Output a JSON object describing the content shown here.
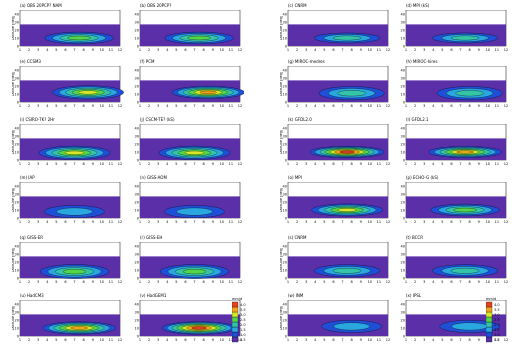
{
  "colors": {
    "levels": [
      "#5a2fa8",
      "#1f4fd6",
      "#2ba7e0",
      "#35c4a8",
      "#53d64a",
      "#d8e62a",
      "#f2a51c",
      "#e8421c"
    ],
    "background": "#ffffff"
  },
  "chart_data": [
    {
      "id": "a",
      "title": "(a) OBS 20PCP? NAM",
      "type": "heatmap",
      "ylabel": "Latitude [deg]",
      "x": [
        1,
        2,
        3,
        4,
        5,
        6,
        7,
        8,
        9,
        10,
        11,
        12
      ],
      "y": [
        0,
        10,
        20,
        30,
        40
      ],
      "xlim": [
        1,
        12
      ],
      "ylim": [
        0,
        45
      ],
      "peak_lat": 10,
      "peak_month": 7.5,
      "intensity": 4,
      "lat_spread": 10
    },
    {
      "id": "b",
      "title": "(b) OBS 20PCP?",
      "type": "heatmap",
      "ylabel": "",
      "x": [
        1,
        2,
        3,
        4,
        5,
        6,
        7,
        8,
        9,
        10,
        11,
        12
      ],
      "y": [
        0,
        10,
        20,
        30,
        40
      ],
      "xlim": [
        1,
        12
      ],
      "ylim": [
        0,
        45
      ],
      "peak_lat": 10,
      "peak_month": 7.5,
      "intensity": 4,
      "lat_spread": 10
    },
    {
      "id": "c",
      "title": "(c) CNRM",
      "type": "heatmap",
      "ylabel": "Latitude [deg]",
      "x": [
        1,
        2,
        3,
        4,
        5,
        6,
        7,
        8,
        9,
        10,
        11,
        12
      ],
      "y": [
        0,
        10,
        20,
        30,
        40
      ],
      "xlim": [
        1,
        12
      ],
      "ylim": [
        0,
        45
      ],
      "peak_lat": 10,
      "peak_month": 7.5,
      "intensity": 3,
      "lat_spread": 9
    },
    {
      "id": "d",
      "title": "(d) MPI (kS)",
      "type": "heatmap",
      "ylabel": "",
      "x": [
        1,
        2,
        3,
        4,
        5,
        6,
        7,
        8,
        9,
        10,
        11,
        12
      ],
      "y": [
        0,
        10,
        20,
        30,
        40
      ],
      "xlim": [
        1,
        12
      ],
      "ylim": [
        0,
        45
      ],
      "peak_lat": 10,
      "peak_month": 7.5,
      "intensity": 3,
      "lat_spread": 9
    },
    {
      "id": "e",
      "title": "(e) CCSM3",
      "type": "heatmap",
      "ylabel": "Latitude [deg]",
      "x": [
        1,
        2,
        3,
        4,
        5,
        6,
        7,
        8,
        9,
        10,
        11,
        12
      ],
      "y": [
        0,
        10,
        20,
        30,
        40
      ],
      "xlim": [
        1,
        12
      ],
      "ylim": [
        0,
        45
      ],
      "peak_lat": 12,
      "peak_month": 8.5,
      "intensity": 5,
      "lat_spread": 11
    },
    {
      "id": "f",
      "title": "(f) PCM",
      "type": "heatmap",
      "ylabel": "",
      "x": [
        1,
        2,
        3,
        4,
        5,
        6,
        7,
        8,
        9,
        10,
        11,
        12
      ],
      "y": [
        0,
        10,
        20,
        30,
        40
      ],
      "xlim": [
        1,
        12
      ],
      "ylim": [
        0,
        45
      ],
      "peak_lat": 12,
      "peak_month": 8.5,
      "intensity": 6,
      "lat_spread": 10
    },
    {
      "id": "g",
      "title": "(g) MIROC-medres",
      "type": "heatmap",
      "ylabel": "Latitude [deg]",
      "x": [
        1,
        2,
        3,
        4,
        5,
        6,
        7,
        8,
        9,
        10,
        11,
        12
      ],
      "y": [
        0,
        10,
        20,
        30,
        40
      ],
      "xlim": [
        1,
        12
      ],
      "ylim": [
        0,
        45
      ],
      "peak_lat": 11,
      "peak_month": 8,
      "intensity": 3,
      "lat_spread": 12
    },
    {
      "id": "h",
      "title": "(h) MIROC-hires",
      "type": "heatmap",
      "ylabel": "",
      "x": [
        1,
        2,
        3,
        4,
        5,
        6,
        7,
        8,
        9,
        10,
        11,
        12
      ],
      "y": [
        0,
        10,
        20,
        30,
        40
      ],
      "xlim": [
        1,
        12
      ],
      "ylim": [
        0,
        45
      ],
      "peak_lat": 11,
      "peak_month": 8,
      "intensity": 3,
      "lat_spread": 12
    },
    {
      "id": "i",
      "title": "(i) CSIRO-TK? 2Hr",
      "type": "heatmap",
      "ylabel": "Latitude [deg]",
      "x": [
        1,
        2,
        3,
        4,
        5,
        6,
        7,
        8,
        9,
        10,
        11,
        12
      ],
      "y": [
        0,
        10,
        20,
        30,
        40
      ],
      "xlim": [
        1,
        12
      ],
      "ylim": [
        0,
        45
      ],
      "peak_lat": 9,
      "peak_month": 7,
      "intensity": 5,
      "lat_spread": 11
    },
    {
      "id": "j",
      "title": "(j) CSCM-TE? (kS)",
      "type": "heatmap",
      "ylabel": "",
      "x": [
        1,
        2,
        3,
        4,
        5,
        6,
        7,
        8,
        9,
        10,
        11,
        12
      ],
      "y": [
        0,
        10,
        20,
        30,
        40
      ],
      "xlim": [
        1,
        12
      ],
      "ylim": [
        0,
        45
      ],
      "peak_lat": 9,
      "peak_month": 7,
      "intensity": 5,
      "lat_spread": 11
    },
    {
      "id": "k",
      "title": "(k) GFDL2.0",
      "type": "heatmap",
      "ylabel": "Latitude [deg]",
      "x": [
        1,
        2,
        3,
        4,
        5,
        6,
        7,
        8,
        9,
        10,
        11,
        12
      ],
      "y": [
        0,
        10,
        20,
        30,
        40
      ],
      "xlim": [
        1,
        12
      ],
      "ylim": [
        0,
        45
      ],
      "peak_lat": 10,
      "peak_month": 7.5,
      "intensity": 7,
      "lat_spread": 9
    },
    {
      "id": "l",
      "title": "(l) GFDL2.1",
      "type": "heatmap",
      "ylabel": "",
      "x": [
        1,
        2,
        3,
        4,
        5,
        6,
        7,
        8,
        9,
        10,
        11,
        12
      ],
      "y": [
        0,
        10,
        20,
        30,
        40
      ],
      "xlim": [
        1,
        12
      ],
      "ylim": [
        0,
        45
      ],
      "peak_lat": 10,
      "peak_month": 7.5,
      "intensity": 6,
      "lat_spread": 9
    },
    {
      "id": "m",
      "title": "(m) IAP",
      "type": "heatmap",
      "ylabel": "Latitude [deg]",
      "x": [
        1,
        2,
        3,
        4,
        5,
        6,
        7,
        8,
        9,
        10,
        11,
        12
      ],
      "y": [
        0,
        10,
        20,
        30,
        40
      ],
      "xlim": [
        1,
        12
      ],
      "ylim": [
        0,
        45
      ],
      "peak_lat": 8,
      "peak_month": 7,
      "intensity": 2,
      "lat_spread": 12
    },
    {
      "id": "n",
      "title": "(n) GISS-AOM",
      "type": "heatmap",
      "ylabel": "",
      "x": [
        1,
        2,
        3,
        4,
        5,
        6,
        7,
        8,
        9,
        10,
        11,
        12
      ],
      "y": [
        0,
        10,
        20,
        30,
        40
      ],
      "xlim": [
        1,
        12
      ],
      "ylim": [
        0,
        45
      ],
      "peak_lat": 8,
      "peak_month": 7,
      "intensity": 2,
      "lat_spread": 12
    },
    {
      "id": "o",
      "title": "(o) MPI",
      "type": "heatmap",
      "ylabel": "Latitude [deg]",
      "x": [
        1,
        2,
        3,
        4,
        5,
        6,
        7,
        8,
        9,
        10,
        11,
        12
      ],
      "y": [
        0,
        10,
        20,
        30,
        40
      ],
      "xlim": [
        1,
        12
      ],
      "ylim": [
        0,
        45
      ],
      "peak_lat": 10,
      "peak_month": 7.5,
      "intensity": 5,
      "lat_spread": 10
    },
    {
      "id": "p",
      "title": "(p) ECHO-G (kS)",
      "type": "heatmap",
      "ylabel": "",
      "x": [
        1,
        2,
        3,
        4,
        5,
        6,
        7,
        8,
        9,
        10,
        11,
        12
      ],
      "y": [
        0,
        10,
        20,
        30,
        40
      ],
      "xlim": [
        1,
        12
      ],
      "ylim": [
        0,
        45
      ],
      "peak_lat": 10,
      "peak_month": 7.5,
      "intensity": 4,
      "lat_spread": 10
    },
    {
      "id": "q",
      "title": "(q) GISS-ER",
      "type": "heatmap",
      "ylabel": "Latitude [deg]",
      "x": [
        1,
        2,
        3,
        4,
        5,
        6,
        7,
        8,
        9,
        10,
        11,
        12
      ],
      "y": [
        0,
        10,
        20,
        30,
        40
      ],
      "xlim": [
        1,
        12
      ],
      "ylim": [
        0,
        45
      ],
      "peak_lat": 8,
      "peak_month": 7,
      "intensity": 4,
      "lat_spread": 12
    },
    {
      "id": "r",
      "title": "(r) GISS-EH",
      "type": "heatmap",
      "ylabel": "",
      "x": [
        1,
        2,
        3,
        4,
        5,
        6,
        7,
        8,
        9,
        10,
        11,
        12
      ],
      "y": [
        0,
        10,
        20,
        30,
        40
      ],
      "xlim": [
        1,
        12
      ],
      "ylim": [
        0,
        45
      ],
      "peak_lat": 8,
      "peak_month": 7,
      "intensity": 4,
      "lat_spread": 12
    },
    {
      "id": "s",
      "title": "(s) CNRM",
      "type": "heatmap",
      "ylabel": "Latitude [deg]",
      "x": [
        1,
        2,
        3,
        4,
        5,
        6,
        7,
        8,
        9,
        10,
        11,
        12
      ],
      "y": [
        0,
        10,
        20,
        30,
        40
      ],
      "xlim": [
        1,
        12
      ],
      "ylim": [
        0,
        45
      ],
      "peak_lat": 9,
      "peak_month": 7.5,
      "intensity": 3,
      "lat_spread": 11
    },
    {
      "id": "t",
      "title": "(t) BCCR",
      "type": "heatmap",
      "ylabel": "",
      "x": [
        1,
        2,
        3,
        4,
        5,
        6,
        7,
        8,
        9,
        10,
        11,
        12
      ],
      "y": [
        0,
        10,
        20,
        30,
        40
      ],
      "xlim": [
        1,
        12
      ],
      "ylim": [
        0,
        45
      ],
      "peak_lat": 9,
      "peak_month": 7.5,
      "intensity": 3,
      "lat_spread": 11
    },
    {
      "id": "u",
      "title": "(u) HadCM3",
      "type": "heatmap",
      "ylabel": "Latitude [deg]",
      "x": [
        1,
        2,
        3,
        4,
        5,
        6,
        7,
        8,
        9,
        10,
        11,
        12
      ],
      "y": [
        0,
        10,
        20,
        30,
        40
      ],
      "xlim": [
        1,
        12
      ],
      "ylim": [
        0,
        45
      ],
      "peak_lat": 10,
      "peak_month": 7.5,
      "intensity": 6,
      "lat_spread": 10
    },
    {
      "id": "v",
      "title": "(v) HadGEM1",
      "type": "heatmap",
      "ylabel": "",
      "x": [
        1,
        2,
        3,
        4,
        5,
        6,
        7,
        8,
        9,
        10,
        11,
        12
      ],
      "y": [
        0,
        10,
        20,
        30,
        40
      ],
      "xlim": [
        1,
        12
      ],
      "ylim": [
        0,
        45
      ],
      "peak_lat": 10,
      "peak_month": 7.5,
      "intensity": 7,
      "lat_spread": 10
    },
    {
      "id": "w",
      "title": "(w) INM",
      "type": "heatmap",
      "ylabel": "Latitude [deg]",
      "x": [
        1,
        2,
        3,
        4,
        5,
        6,
        7,
        8,
        9,
        10,
        11,
        12
      ],
      "y": [
        0,
        10,
        20,
        30,
        40
      ],
      "xlim": [
        1,
        12
      ],
      "ylim": [
        0,
        45
      ],
      "peak_lat": 12,
      "peak_month": 8,
      "intensity": 2,
      "lat_spread": 12
    },
    {
      "id": "x",
      "title": "(x) IPSL",
      "type": "heatmap",
      "ylabel": "",
      "x": [
        1,
        2,
        3,
        4,
        5,
        6,
        7,
        8,
        9,
        10,
        11,
        12
      ],
      "y": [
        0,
        10,
        20,
        30,
        40
      ],
      "xlim": [
        1,
        12
      ],
      "ylim": [
        0,
        45
      ],
      "peak_lat": 12,
      "peak_month": 8,
      "intensity": 2,
      "lat_spread": 12
    }
  ],
  "legend": {
    "unit": "mm/d",
    "labels": [
      "0.5",
      "1.0",
      "1.5",
      "2.0",
      "2.5",
      "3.0",
      "3.5",
      "4.0"
    ]
  }
}
